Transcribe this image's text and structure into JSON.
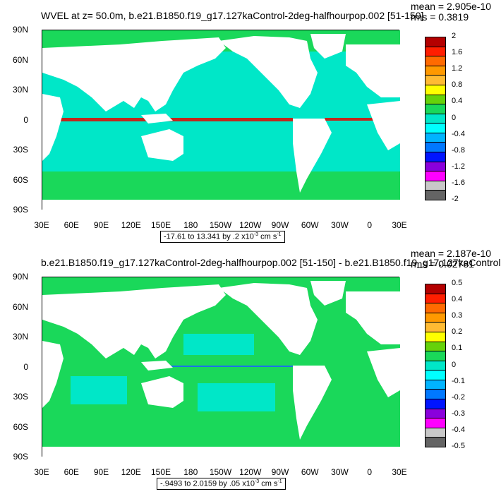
{
  "panels": [
    {
      "title": "WVEL at z=  50.0m, b.e21.B1850.f19_g17.127kaControl-2deg-halfhourpop.002 [51-150]",
      "mean": "mean = 2.905e-10",
      "rms": "rms = 0.3819",
      "ocean_color": "#00e7c8",
      "shelf_color": "#1ad85a",
      "equator_color": "#c0281e",
      "range_text": "-17.61 to 13.341 by .2 x10",
      "range_exp": "-3",
      "range_units": " cm s",
      "range_units_exp": "-1",
      "colorbar_labels": [
        "2",
        "1.6",
        "1.2",
        "0.8",
        "0.4",
        "0",
        "-0.4",
        "-0.8",
        "-1.2",
        "-1.6",
        "-2"
      ]
    },
    {
      "title": "b.e21.B1850.f19_g17.127kaControl-2deg-halfhourpop.002 [51-150] - b.e21.B1850.f19_g17.127kaControl",
      "mean": "mean = 2.187e-10",
      "rms": "rms = 0.02781",
      "ocean_color": "#1ad85a",
      "shelf_color": "#00e7c8",
      "equator_color": "#1a73e8",
      "range_text": "-.9493 to 2.0159 by .05 x10",
      "range_exp": "-3",
      "range_units": " cm s",
      "range_units_exp": "-1",
      "colorbar_labels": [
        "0.5",
        "0.4",
        "0.3",
        "0.2",
        "0.1",
        "0",
        "-0.1",
        "-0.2",
        "-0.3",
        "-0.4",
        "-0.5"
      ]
    }
  ],
  "lat_labels": [
    "90N",
    "60N",
    "30N",
    "0",
    "30S",
    "60S",
    "90S"
  ],
  "lon_labels": [
    "30E",
    "60E",
    "90E",
    "120E",
    "150E",
    "180",
    "150W",
    "120W",
    "90W",
    "60W",
    "30W",
    "0",
    "30E"
  ],
  "colorbar_colors": [
    "#b40000",
    "#ff1e00",
    "#ff6a00",
    "#ff9900",
    "#ffbb33",
    "#ffff00",
    "#66d20a",
    "#1ad85a",
    "#00e7c8",
    "#00ffff",
    "#00b4ff",
    "#0078ff",
    "#0014ff",
    "#8a00dc",
    "#ff00ff",
    "#c8c8c8",
    "#646464"
  ],
  "colors": {
    "land": "#ffffff"
  }
}
